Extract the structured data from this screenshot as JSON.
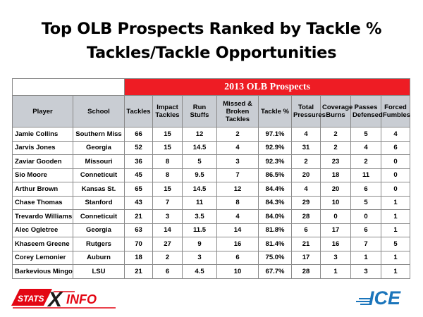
{
  "title_line1": "Top OLB Prospects Ranked by Tackle %",
  "title_line2": "Tackles/Tackle Opportunities",
  "table": {
    "banner": "2013 OLB Prospects",
    "headers": [
      "Player",
      "School",
      "Tackles",
      "Impact Tackles",
      "Run Stuffs",
      "Missed & Broken Tackles",
      "Tackle %",
      "Total Pressures",
      "Coverage Burns",
      "Passes Defensed",
      "Forced Fumbles"
    ],
    "rows": [
      [
        "Jamie Collins",
        "Southern Miss",
        "66",
        "15",
        "12",
        "2",
        "97.1%",
        "4",
        "2",
        "5",
        "4"
      ],
      [
        "Jarvis Jones",
        "Georgia",
        "52",
        "15",
        "14.5",
        "4",
        "92.9%",
        "31",
        "2",
        "4",
        "6"
      ],
      [
        "Zaviar Gooden",
        "Missouri",
        "36",
        "8",
        "5",
        "3",
        "92.3%",
        "2",
        "23",
        "2",
        "0"
      ],
      [
        "Sio Moore",
        "Conneticuit",
        "45",
        "8",
        "9.5",
        "7",
        "86.5%",
        "20",
        "18",
        "11",
        "0"
      ],
      [
        "Arthur Brown",
        "Kansas St.",
        "65",
        "15",
        "14.5",
        "12",
        "84.4%",
        "4",
        "20",
        "6",
        "0"
      ],
      [
        "Chase Thomas",
        "Stanford",
        "43",
        "7",
        "11",
        "8",
        "84.3%",
        "29",
        "10",
        "5",
        "1"
      ],
      [
        "Trevardo Williams",
        "Conneticuit",
        "21",
        "3",
        "3.5",
        "4",
        "84.0%",
        "28",
        "0",
        "0",
        "1"
      ],
      [
        "Alec Ogletree",
        "Georgia",
        "63",
        "14",
        "11.5",
        "14",
        "81.8%",
        "6",
        "17",
        "6",
        "1"
      ],
      [
        "Khaseem Greene",
        "Rutgers",
        "70",
        "27",
        "9",
        "16",
        "81.4%",
        "21",
        "16",
        "7",
        "5"
      ],
      [
        "Corey Lemonier",
        "Auburn",
        "18",
        "2",
        "3",
        "6",
        "75.0%",
        "17",
        "3",
        "1",
        "1"
      ],
      [
        "Barkevious Mingo",
        "LSU",
        "21",
        "6",
        "4.5",
        "10",
        "67.7%",
        "28",
        "1",
        "3",
        "1"
      ]
    ]
  },
  "logos": {
    "left_text_a": "STATS",
    "left_text_b": "X",
    "left_text_c": "INFO",
    "right_text": "ICE",
    "red": "#e30613",
    "blue": "#1b75bb"
  },
  "colors": {
    "banner": "#ee1c24",
    "header": "#c9cdd3"
  }
}
